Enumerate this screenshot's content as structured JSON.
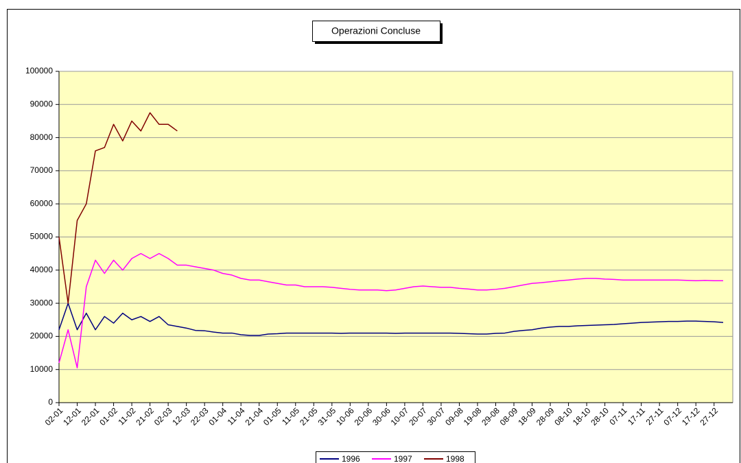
{
  "chart_data": {
    "type": "line",
    "title": "Operazioni Concluse",
    "categories": [
      "02-01",
      null,
      "12-01",
      null,
      "22-01",
      null,
      "01-02",
      null,
      "11-02",
      null,
      "21-02",
      null,
      "02-03",
      null,
      "12-03",
      null,
      "22-03",
      null,
      "01-04",
      null,
      "11-04",
      null,
      "21-04",
      null,
      "01-05",
      null,
      "11-05",
      null,
      "21-05",
      null,
      "31-05",
      null,
      "10-06",
      null,
      "20-06",
      null,
      "30-06",
      null,
      "10-07",
      null,
      "20-07",
      null,
      "30-07",
      null,
      "09-08",
      null,
      "19-08",
      null,
      "29-08",
      null,
      "08-09",
      null,
      "18-09",
      null,
      "28-09",
      null,
      "08-10",
      null,
      "18-10",
      null,
      "28-10",
      null,
      "07-11",
      null,
      "17-11",
      null,
      "27-11",
      null,
      "07-12",
      null,
      "17-12",
      null,
      "27-12",
      null
    ],
    "series": [
      {
        "name": "1996",
        "color": "#000080",
        "values": [
          22000,
          30000,
          22000,
          27000,
          22000,
          26000,
          24000,
          27000,
          25000,
          26000,
          24500,
          26000,
          23500,
          23000,
          22500,
          21800,
          21700,
          21300,
          21000,
          21000,
          20500,
          20300,
          20300,
          20700,
          20800,
          21000,
          21000,
          21000,
          21000,
          21000,
          21000,
          20900,
          21000,
          21000,
          21000,
          21000,
          21000,
          20900,
          21000,
          21000,
          21000,
          21000,
          21000,
          21000,
          20900,
          20800,
          20700,
          20700,
          20900,
          21000,
          21500,
          21800,
          22000,
          22500,
          22800,
          23000,
          23000,
          23200,
          23300,
          23400,
          23500,
          23600,
          23800,
          24000,
          24200,
          24300,
          24400,
          24500,
          24500,
          24600,
          24600,
          24500,
          24400,
          24200
        ]
      },
      {
        "name": "1997",
        "color": "#ff00ff",
        "values": [
          12000,
          22000,
          10500,
          35000,
          43000,
          39000,
          43000,
          40000,
          43500,
          45000,
          43500,
          45000,
          43500,
          41500,
          41500,
          41000,
          40500,
          40000,
          39000,
          38500,
          37500,
          37000,
          37000,
          36500,
          36000,
          35500,
          35500,
          35000,
          35000,
          35000,
          34800,
          34500,
          34200,
          34000,
          34000,
          34000,
          33800,
          34000,
          34500,
          35000,
          35200,
          35000,
          34800,
          34800,
          34500,
          34300,
          34000,
          34000,
          34200,
          34500,
          35000,
          35500,
          36000,
          36200,
          36500,
          36800,
          37000,
          37300,
          37500,
          37500,
          37300,
          37200,
          37000,
          37000,
          37000,
          37000,
          37000,
          37000,
          37000,
          36900,
          36800,
          36900,
          36800,
          36800
        ]
      },
      {
        "name": "1998",
        "color": "#800000",
        "values": [
          50000,
          30000,
          55000,
          60000,
          76000,
          77000,
          84000,
          79000,
          85000,
          82000,
          87500,
          84000,
          84000,
          82000,
          null,
          null,
          null,
          null,
          null,
          null,
          null,
          null,
          null,
          null,
          null,
          null,
          null,
          null,
          null,
          null,
          null,
          null,
          null,
          null,
          null,
          null,
          null,
          null,
          null,
          null,
          null,
          null,
          null,
          null,
          null,
          null,
          null,
          null,
          null,
          null,
          null,
          null,
          null,
          null,
          null,
          null,
          null,
          null,
          null,
          null,
          null,
          null,
          null,
          null,
          null,
          null,
          null,
          null,
          null,
          null,
          null,
          null,
          null,
          null
        ]
      }
    ],
    "ylim": [
      0,
      100000
    ],
    "yticks": [
      0,
      10000,
      20000,
      30000,
      40000,
      50000,
      60000,
      70000,
      80000,
      90000,
      100000
    ],
    "grid": true
  }
}
